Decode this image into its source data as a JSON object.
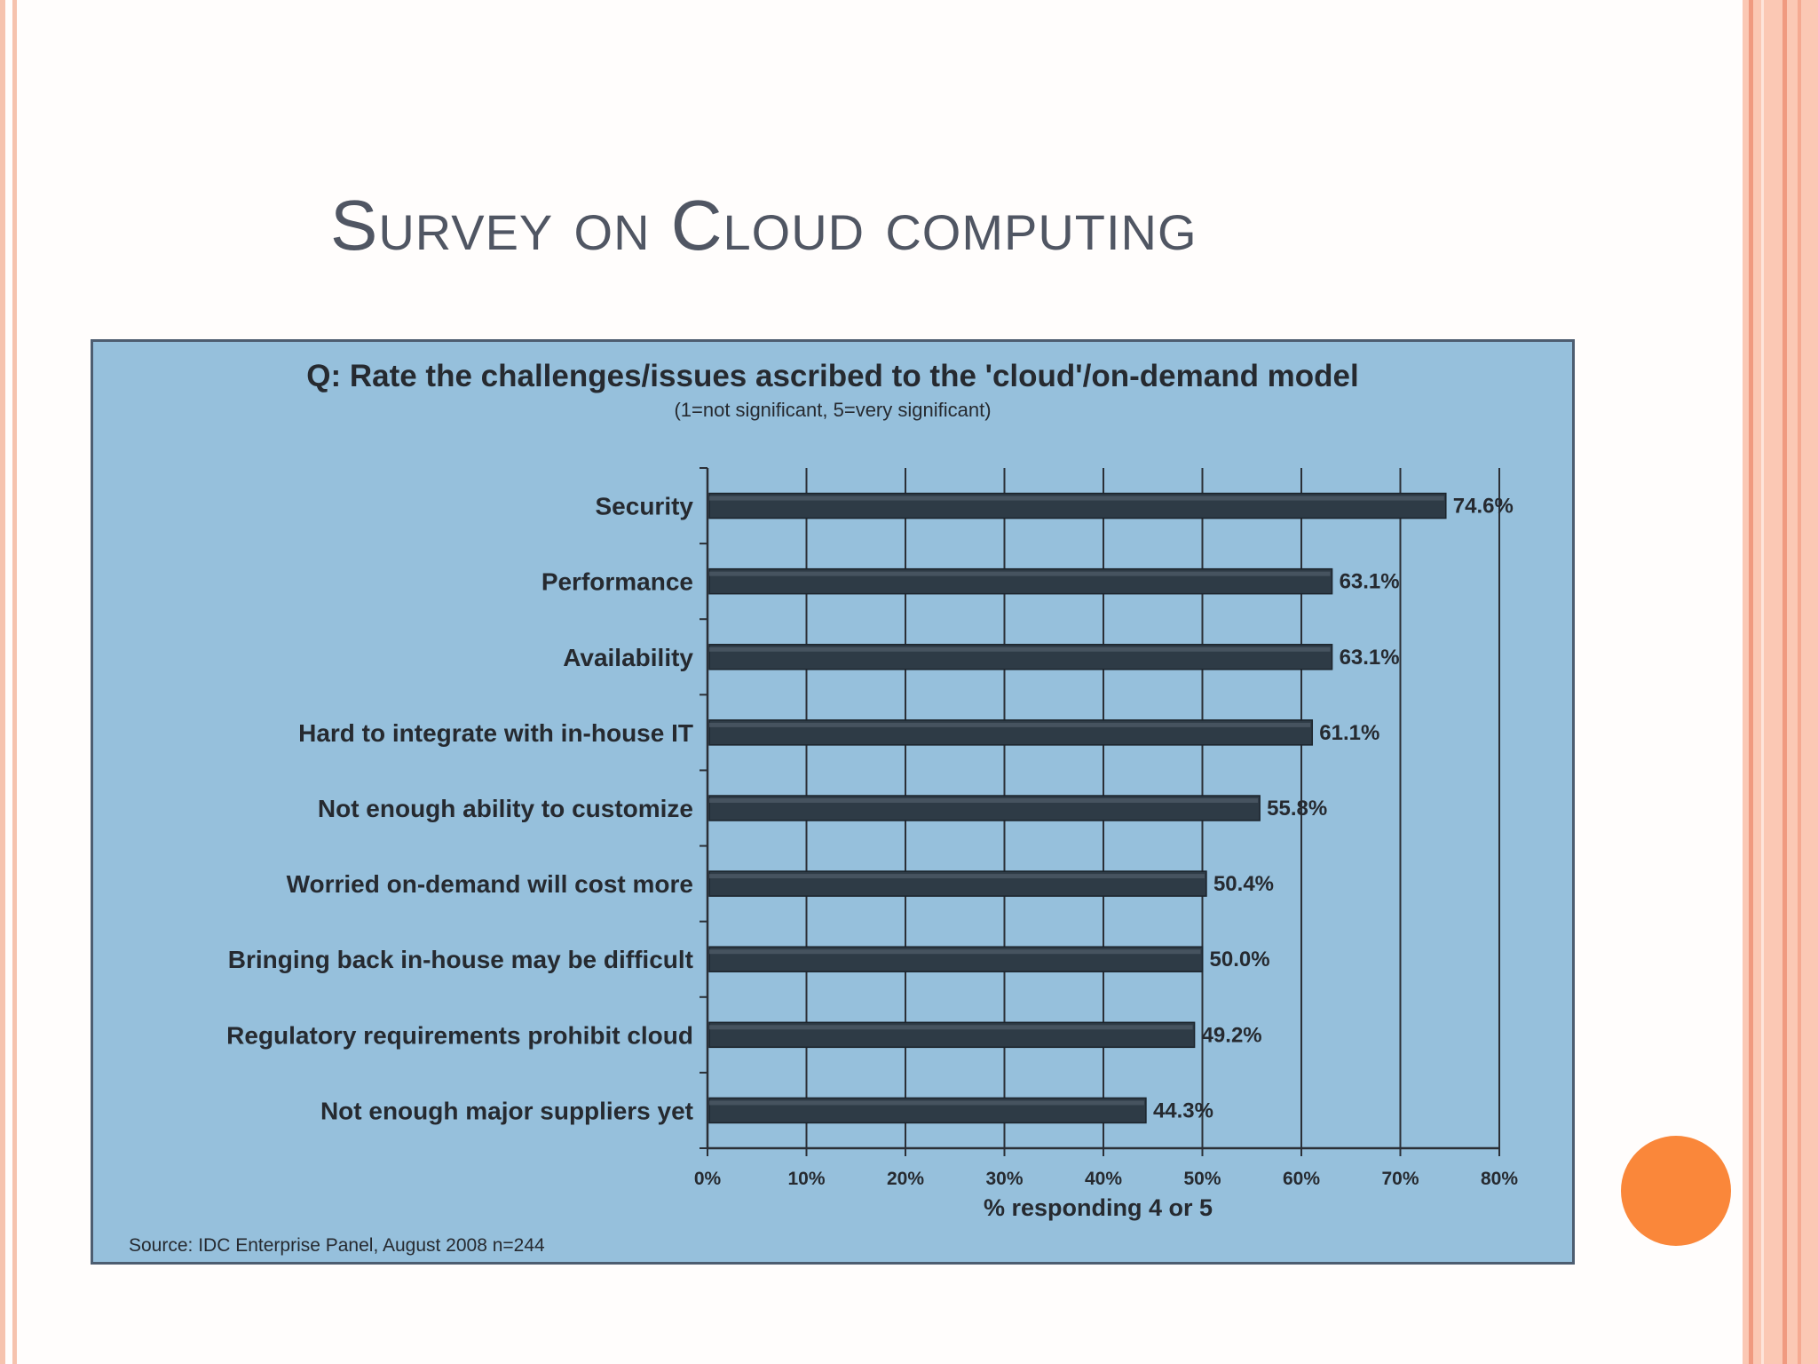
{
  "slide": {
    "title": "Survey on Cloud computing"
  },
  "colors": {
    "panel_background": "#96c0dc",
    "bar_fill": "#2e3b46",
    "accent_circle": "#fa873a",
    "border_accent": "#f09a80"
  },
  "chart_data": {
    "type": "bar",
    "orientation": "horizontal",
    "title": "Q: Rate the challenges/issues ascribed to the 'cloud'/on-demand model",
    "subtitle": "(1=not significant, 5=very significant)",
    "categories": [
      "Security",
      "Performance",
      "Availability",
      "Hard to integrate with in-house IT",
      "Not enough ability to customize",
      "Worried on-demand will cost more",
      "Bringing back in-house may be difficult",
      "Regulatory requirements prohibit cloud",
      "Not enough major suppliers yet"
    ],
    "values": [
      74.6,
      63.1,
      63.1,
      61.1,
      55.8,
      50.4,
      50.0,
      49.2,
      44.3
    ],
    "value_labels": [
      "74.6%",
      "63.1%",
      "63.1%",
      "61.1%",
      "55.8%",
      "50.4%",
      "50.0%",
      "49.2%",
      "44.3%"
    ],
    "xlabel": "% responding 4 or 5",
    "xlim": [
      0,
      80
    ],
    "xticks": [
      0,
      10,
      20,
      30,
      40,
      50,
      60,
      70,
      80
    ],
    "xtick_labels": [
      "0%",
      "10%",
      "20%",
      "30%",
      "40%",
      "50%",
      "60%",
      "70%",
      "80%"
    ],
    "grid": true,
    "source": "Source: IDC Enterprise Panel, August 2008 n=244"
  }
}
